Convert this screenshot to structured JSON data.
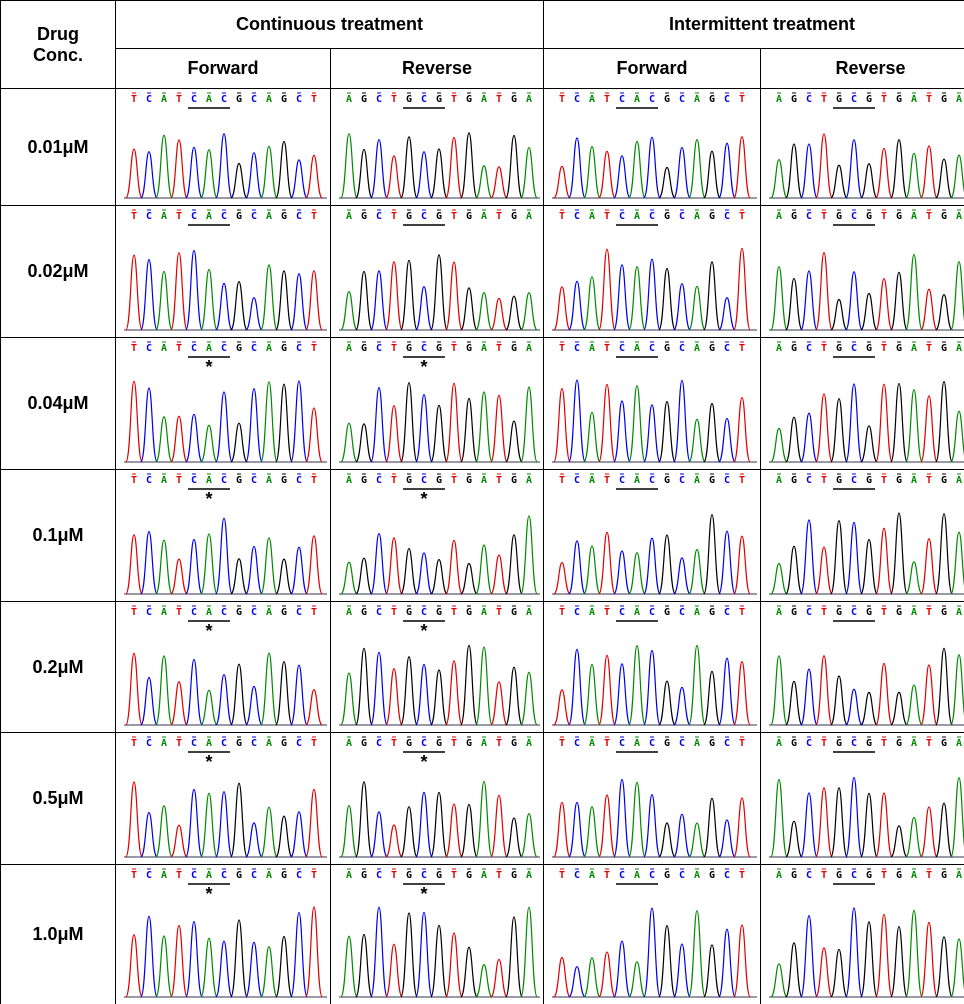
{
  "table": {
    "header": {
      "corner": "Drug Conc.",
      "groups": [
        "Continuous treatment",
        "Intermittent treatment"
      ],
      "directions": [
        "Forward",
        "Reverse",
        "Forward",
        "Reverse"
      ]
    },
    "rows": [
      {
        "label": "0.01μM",
        "cells": [
          {
            "sequence": "TCATCACGCAGCT"
          },
          {
            "sequence": "AGCTGCGTGATGA"
          },
          {
            "sequence": "TCATCACGCAGCT"
          },
          {
            "sequence": "AGCTGCGTGATGA"
          }
        ]
      },
      {
        "label": "0.02μM",
        "cells": [
          {
            "sequence": "TCATCACGCAGCT"
          },
          {
            "sequence": "AGCTGCGTGATGA"
          },
          {
            "sequence": "TCATCACGCAGCT"
          },
          {
            "sequence": "AGCTGCGTGATGA"
          }
        ]
      },
      {
        "label": "0.04μM",
        "cells": [
          {
            "sequence": "TCATCACGCAGCT",
            "mark": "*"
          },
          {
            "sequence": "AGCTGCGTGATGA",
            "mark": "*"
          },
          {
            "sequence": "TCATCACGCAGCT"
          },
          {
            "sequence": "AGCTGCGTGATGA"
          }
        ]
      },
      {
        "label": "0.1μM",
        "cells": [
          {
            "sequence": "TCATCACGCAGCT",
            "mark": "*"
          },
          {
            "sequence": "AGCTGCGTGATGA",
            "mark": "*"
          },
          {
            "sequence": "TCATCACGCAGCT"
          },
          {
            "sequence": "AGCTGCGTGATGA"
          }
        ]
      },
      {
        "label": "0.2μM",
        "cells": [
          {
            "sequence": "TCATCACGCAGCT",
            "mark": "*"
          },
          {
            "sequence": "AGCTGCGTGATGA",
            "mark": "*"
          },
          {
            "sequence": "TCATCACGCAGCT"
          },
          {
            "sequence": "AGCTGCGTGATGA"
          }
        ]
      },
      {
        "label": "0.5μM",
        "cells": [
          {
            "sequence": "TCATCACGCAGCT",
            "mark": "*"
          },
          {
            "sequence": "AGCTGCGTGATGA",
            "mark": "*"
          },
          {
            "sequence": "TCATCACGCAGCT"
          },
          {
            "sequence": "AGCTGCGTGATGA"
          }
        ]
      },
      {
        "label": "1.0μM",
        "cells": [
          {
            "sequence": "TCATCACGCAGCT",
            "mark": "*"
          },
          {
            "sequence": "AGCTGCGTGATGA",
            "mark": "*"
          },
          {
            "sequence": "TCATCACGCAGCT"
          },
          {
            "sequence": "AGCTGCGTGATGA"
          }
        ]
      }
    ]
  }
}
